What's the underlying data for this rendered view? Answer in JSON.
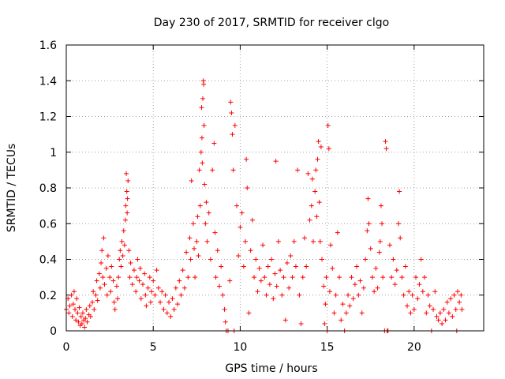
{
  "chart_data": {
    "type": "scatter",
    "title": "Day 230 of 2017, SRMTID for receiver clgo",
    "xlabel": "GPS time / hours",
    "ylabel": "SRMTID / TECUs",
    "xlim": [
      0,
      24
    ],
    "ylim": [
      0,
      1.6
    ],
    "xticks": [
      0,
      5,
      10,
      15,
      20
    ],
    "yticks": [
      0,
      0.2,
      0.4,
      0.6,
      0.8,
      1,
      1.2,
      1.4,
      1.6
    ],
    "ytick_labels": [
      "0",
      "0.2",
      "0.4",
      "0.6",
      "0.8",
      "1",
      "1.2",
      "1.4",
      "1.6"
    ],
    "grid": true,
    "marker": "+",
    "series": [
      {
        "name": "SRMTID",
        "color": "#ff0000",
        "points": [
          [
            0.0,
            0.12
          ],
          [
            0.1,
            0.18
          ],
          [
            0.15,
            0.1
          ],
          [
            0.2,
            0.14
          ],
          [
            0.3,
            0.2
          ],
          [
            0.35,
            0.08
          ],
          [
            0.4,
            0.15
          ],
          [
            0.45,
            0.22
          ],
          [
            0.5,
            0.12
          ],
          [
            0.55,
            0.06
          ],
          [
            0.6,
            0.18
          ],
          [
            0.65,
            0.1
          ],
          [
            0.7,
            0.05
          ],
          [
            0.75,
            0.13
          ],
          [
            0.8,
            0.03
          ],
          [
            0.85,
            0.08
          ],
          [
            0.9,
            0.04
          ],
          [
            0.95,
            0.1
          ],
          [
            1.0,
            0.06
          ],
          [
            1.05,
            0.02
          ],
          [
            1.1,
            0.07
          ],
          [
            1.15,
            0.12
          ],
          [
            1.2,
            0.05
          ],
          [
            1.3,
            0.09
          ],
          [
            1.35,
            0.14
          ],
          [
            1.4,
            0.08
          ],
          [
            1.5,
            0.16
          ],
          [
            1.55,
            0.22
          ],
          [
            1.6,
            0.12
          ],
          [
            1.7,
            0.2
          ],
          [
            1.75,
            0.28
          ],
          [
            1.8,
            0.17
          ],
          [
            1.9,
            0.32
          ],
          [
            1.95,
            0.24
          ],
          [
            2.0,
            0.38
          ],
          [
            2.05,
            0.45
          ],
          [
            2.1,
            0.3
          ],
          [
            2.15,
            0.52
          ],
          [
            2.2,
            0.26
          ],
          [
            2.3,
            0.35
          ],
          [
            2.35,
            0.2
          ],
          [
            2.4,
            0.42
          ],
          [
            2.5,
            0.3
          ],
          [
            2.55,
            0.22
          ],
          [
            2.6,
            0.36
          ],
          [
            2.7,
            0.28
          ],
          [
            2.75,
            0.16
          ],
          [
            2.8,
            0.12
          ],
          [
            2.9,
            0.25
          ],
          [
            2.95,
            0.18
          ],
          [
            3.0,
            0.3
          ],
          [
            3.05,
            0.4
          ],
          [
            3.1,
            0.45
          ],
          [
            3.15,
            0.36
          ],
          [
            3.2,
            0.5
          ],
          [
            3.25,
            0.42
          ],
          [
            3.3,
            0.56
          ],
          [
            3.35,
            0.48
          ],
          [
            3.4,
            0.62
          ],
          [
            3.42,
            0.7
          ],
          [
            3.45,
            0.88
          ],
          [
            3.48,
            0.78
          ],
          [
            3.5,
            0.66
          ],
          [
            3.52,
            0.74
          ],
          [
            3.55,
            0.84
          ],
          [
            3.6,
            0.45
          ],
          [
            3.65,
            0.3
          ],
          [
            3.7,
            0.38
          ],
          [
            3.8,
            0.26
          ],
          [
            3.9,
            0.34
          ],
          [
            4.0,
            0.22
          ],
          [
            4.05,
            0.3
          ],
          [
            4.1,
            0.4
          ],
          [
            4.2,
            0.28
          ],
          [
            4.25,
            0.35
          ],
          [
            4.3,
            0.18
          ],
          [
            4.4,
            0.26
          ],
          [
            4.5,
            0.32
          ],
          [
            4.55,
            0.2
          ],
          [
            4.6,
            0.14
          ],
          [
            4.7,
            0.24
          ],
          [
            4.8,
            0.3
          ],
          [
            4.85,
            0.16
          ],
          [
            4.9,
            0.22
          ],
          [
            5.0,
            0.28
          ],
          [
            5.1,
            0.2
          ],
          [
            5.2,
            0.34
          ],
          [
            5.3,
            0.24
          ],
          [
            5.4,
            0.16
          ],
          [
            5.5,
            0.22
          ],
          [
            5.6,
            0.12
          ],
          [
            5.7,
            0.2
          ],
          [
            5.8,
            0.1
          ],
          [
            5.9,
            0.16
          ],
          [
            6.0,
            0.08
          ],
          [
            6.1,
            0.18
          ],
          [
            6.2,
            0.12
          ],
          [
            6.3,
            0.24
          ],
          [
            6.4,
            0.15
          ],
          [
            6.5,
            0.28
          ],
          [
            6.6,
            0.2
          ],
          [
            6.7,
            0.34
          ],
          [
            6.8,
            0.24
          ],
          [
            6.9,
            0.44
          ],
          [
            7.0,
            0.3
          ],
          [
            7.1,
            0.52
          ],
          [
            7.15,
            0.4
          ],
          [
            7.2,
            0.84
          ],
          [
            7.3,
            0.6
          ],
          [
            7.35,
            0.46
          ],
          [
            7.4,
            0.3
          ],
          [
            7.5,
            0.5
          ],
          [
            7.55,
            0.64
          ],
          [
            7.6,
            0.42
          ],
          [
            7.65,
            0.9
          ],
          [
            7.7,
            0.7
          ],
          [
            7.75,
            1.0
          ],
          [
            7.78,
            1.25
          ],
          [
            7.8,
            1.08
          ],
          [
            7.82,
            0.94
          ],
          [
            7.85,
            1.3
          ],
          [
            7.88,
            1.4
          ],
          [
            7.9,
            1.38
          ],
          [
            7.92,
            1.15
          ],
          [
            7.95,
            0.82
          ],
          [
            8.0,
            0.6
          ],
          [
            8.05,
            0.72
          ],
          [
            8.1,
            0.5
          ],
          [
            8.2,
            0.66
          ],
          [
            8.3,
            0.4
          ],
          [
            8.4,
            0.9
          ],
          [
            8.5,
            1.05
          ],
          [
            8.55,
            0.55
          ],
          [
            8.6,
            0.3
          ],
          [
            8.7,
            0.45
          ],
          [
            8.8,
            0.25
          ],
          [
            8.9,
            0.36
          ],
          [
            9.0,
            0.2
          ],
          [
            9.1,
            0.12
          ],
          [
            9.15,
            0.05
          ],
          [
            9.2,
            0.0
          ],
          [
            9.3,
            0.0
          ],
          [
            9.4,
            0.28
          ],
          [
            9.45,
            1.28
          ],
          [
            9.5,
            1.22
          ],
          [
            9.55,
            1.1
          ],
          [
            9.6,
            0.9
          ],
          [
            9.65,
            0.0
          ],
          [
            9.7,
            1.15
          ],
          [
            9.8,
            0.7
          ],
          [
            9.9,
            0.42
          ],
          [
            10.0,
            0.58
          ],
          [
            10.1,
            0.66
          ],
          [
            10.2,
            0.36
          ],
          [
            10.3,
            0.5
          ],
          [
            10.35,
            0.96
          ],
          [
            10.4,
            0.8
          ],
          [
            10.5,
            0.1
          ],
          [
            10.6,
            0.45
          ],
          [
            10.7,
            0.62
          ],
          [
            10.8,
            0.3
          ],
          [
            10.9,
            0.4
          ],
          [
            11.0,
            0.22
          ],
          [
            11.1,
            0.35
          ],
          [
            11.2,
            0.28
          ],
          [
            11.3,
            0.48
          ],
          [
            11.4,
            0.3
          ],
          [
            11.5,
            0.2
          ],
          [
            11.6,
            0.36
          ],
          [
            11.7,
            0.26
          ],
          [
            11.8,
            0.4
          ],
          [
            11.9,
            0.18
          ],
          [
            12.0,
            0.32
          ],
          [
            12.05,
            0.95
          ],
          [
            12.1,
            0.25
          ],
          [
            12.2,
            0.5
          ],
          [
            12.3,
            0.34
          ],
          [
            12.4,
            0.2
          ],
          [
            12.5,
            0.3
          ],
          [
            12.6,
            0.06
          ],
          [
            12.7,
            0.38
          ],
          [
            12.8,
            0.24
          ],
          [
            12.9,
            0.42
          ],
          [
            13.0,
            0.3
          ],
          [
            13.1,
            0.5
          ],
          [
            13.2,
            0.36
          ],
          [
            13.3,
            0.9
          ],
          [
            13.4,
            0.2
          ],
          [
            13.5,
            0.04
          ],
          [
            13.6,
            0.3
          ],
          [
            13.7,
            0.52
          ],
          [
            13.8,
            0.36
          ],
          [
            13.9,
            0.88
          ],
          [
            14.0,
            0.62
          ],
          [
            14.1,
            0.7
          ],
          [
            14.15,
            0.85
          ],
          [
            14.2,
            0.5
          ],
          [
            14.3,
            0.78
          ],
          [
            14.35,
            0.9
          ],
          [
            14.4,
            0.64
          ],
          [
            14.45,
            0.96
          ],
          [
            14.5,
            1.06
          ],
          [
            14.55,
            0.72
          ],
          [
            14.6,
            0.5
          ],
          [
            14.65,
            1.03
          ],
          [
            14.7,
            0.4
          ],
          [
            14.8,
            0.25
          ],
          [
            14.85,
            0.04
          ],
          [
            14.9,
            0.15
          ],
          [
            14.95,
            0.3
          ],
          [
            15.0,
            0.0
          ],
          [
            15.05,
            1.15
          ],
          [
            15.1,
            1.02
          ],
          [
            15.15,
            0.22
          ],
          [
            15.2,
            0.48
          ],
          [
            15.3,
            0.35
          ],
          [
            15.4,
            0.1
          ],
          [
            15.5,
            0.2
          ],
          [
            15.6,
            0.55
          ],
          [
            15.7,
            0.3
          ],
          [
            15.8,
            0.06
          ],
          [
            15.9,
            0.15
          ],
          [
            16.0,
            0.0
          ],
          [
            16.1,
            0.1
          ],
          [
            16.2,
            0.2
          ],
          [
            16.3,
            0.14
          ],
          [
            16.4,
            0.3
          ],
          [
            16.5,
            0.18
          ],
          [
            16.6,
            0.26
          ],
          [
            16.7,
            0.36
          ],
          [
            16.8,
            0.2
          ],
          [
            16.9,
            0.28
          ],
          [
            17.0,
            0.1
          ],
          [
            17.1,
            0.24
          ],
          [
            17.2,
            0.4
          ],
          [
            17.3,
            0.56
          ],
          [
            17.35,
            0.74
          ],
          [
            17.4,
            0.6
          ],
          [
            17.5,
            0.46
          ],
          [
            17.6,
            0.3
          ],
          [
            17.7,
            0.22
          ],
          [
            17.8,
            0.35
          ],
          [
            17.9,
            0.24
          ],
          [
            18.0,
            0.44
          ],
          [
            18.05,
            0.5
          ],
          [
            18.1,
            0.7
          ],
          [
            18.15,
            0.6
          ],
          [
            18.2,
            0.3
          ],
          [
            18.3,
            0.0
          ],
          [
            18.35,
            1.06
          ],
          [
            18.4,
            1.02
          ],
          [
            18.45,
            0.0
          ],
          [
            18.5,
            0.0
          ],
          [
            18.6,
            0.48
          ],
          [
            18.7,
            0.3
          ],
          [
            18.8,
            0.4
          ],
          [
            18.9,
            0.26
          ],
          [
            19.0,
            0.34
          ],
          [
            19.1,
            0.6
          ],
          [
            19.15,
            0.78
          ],
          [
            19.2,
            0.52
          ],
          [
            19.3,
            0.3
          ],
          [
            19.4,
            0.2
          ],
          [
            19.5,
            0.36
          ],
          [
            19.6,
            0.14
          ],
          [
            19.7,
            0.22
          ],
          [
            19.8,
            0.1
          ],
          [
            19.9,
            0.2
          ],
          [
            20.0,
            0.12
          ],
          [
            20.1,
            0.3
          ],
          [
            20.2,
            0.18
          ],
          [
            20.3,
            0.26
          ],
          [
            20.4,
            0.4
          ],
          [
            20.5,
            0.22
          ],
          [
            20.6,
            0.3
          ],
          [
            20.7,
            0.1
          ],
          [
            20.8,
            0.2
          ],
          [
            20.9,
            0.14
          ],
          [
            21.0,
            0.0
          ],
          [
            21.1,
            0.12
          ],
          [
            21.2,
            0.22
          ],
          [
            21.3,
            0.08
          ],
          [
            21.4,
            0.06
          ],
          [
            21.5,
            0.1
          ],
          [
            21.6,
            0.04
          ],
          [
            21.7,
            0.12
          ],
          [
            21.8,
            0.06
          ],
          [
            21.9,
            0.16
          ],
          [
            22.0,
            0.1
          ],
          [
            22.1,
            0.18
          ],
          [
            22.2,
            0.08
          ],
          [
            22.3,
            0.2
          ],
          [
            22.4,
            0.12
          ],
          [
            22.45,
            0.0
          ],
          [
            22.5,
            0.22
          ],
          [
            22.6,
            0.16
          ],
          [
            22.7,
            0.2
          ],
          [
            22.75,
            0.12
          ]
        ]
      }
    ]
  }
}
